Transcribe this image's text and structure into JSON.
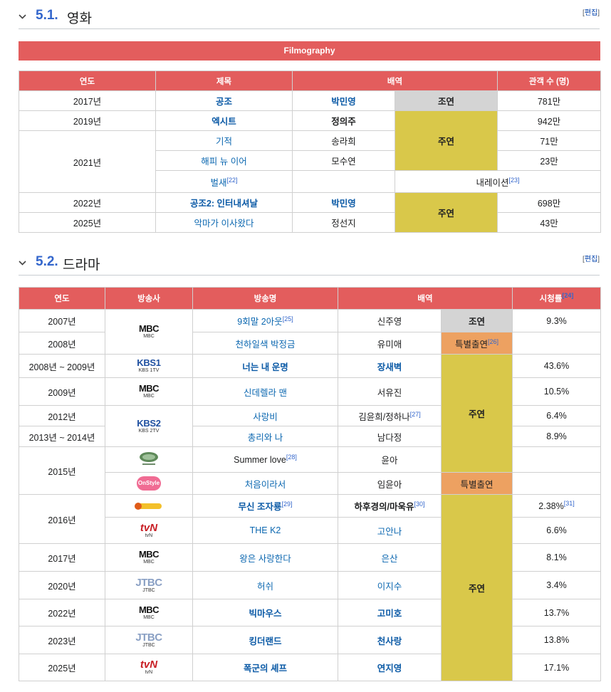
{
  "film_section": {
    "num": "5.1.",
    "title": "영화",
    "edit": "편집"
  },
  "film_caption": "Filmography",
  "film_headers": {
    "year": "연도",
    "title": "제목",
    "role": "배역",
    "audience": "관객 수 (명)"
  },
  "films": {
    "r0": {
      "year": "2017년",
      "title": "공조",
      "char": "박민영",
      "type": "조연",
      "aud": "781만"
    },
    "r1": {
      "year": "2019년",
      "title": "엑시트",
      "char": "정의주",
      "aud": "942만"
    },
    "r2": {
      "year": "2021년",
      "title": "기적",
      "char": "송라희",
      "aud": "71만"
    },
    "r3": {
      "title": "해피 뉴 이어",
      "char": "모수연",
      "aud": "23만"
    },
    "r4": {
      "title": "벌새",
      "title_ref": "[22]",
      "role": "내레이션",
      "role_ref": "[23]"
    },
    "r5": {
      "year": "2022년",
      "title": "공조2: 인터내셔날",
      "char": "박민영",
      "aud": "698만"
    },
    "r6": {
      "year": "2025년",
      "title": "악마가 이사왔다",
      "char": "정선지",
      "aud": "43만"
    },
    "lead1": "주연",
    "lead2": "주연"
  },
  "drama_section": {
    "num": "5.2.",
    "title": "드라마",
    "edit": "편집"
  },
  "drama_headers": {
    "year": "연도",
    "network": "방송사",
    "title": "방송명",
    "role": "배역",
    "rating": "시청률",
    "rating_ref": "[24]"
  },
  "dramas": {
    "r0": {
      "year": "2007년",
      "title": "9회말 2아웃",
      "title_ref": "[25]",
      "char": "신주영",
      "type": "조연",
      "rating": "9.3%"
    },
    "r1": {
      "year": "2008년",
      "title": "천하일색 박정금",
      "char": "유미애",
      "type": "특별출연",
      "type_ref": "[26]"
    },
    "r2": {
      "year": "2008년 ~ 2009년",
      "title": "너는 내 운명",
      "char": "장새벽",
      "rating": "43.6%"
    },
    "r3": {
      "year": "2009년",
      "title": "신데렐라 맨",
      "char": "서유진",
      "rating": "10.5%"
    },
    "r4": {
      "year": "2012년",
      "title": "사랑비",
      "char": "김윤희/정하나",
      "char_ref": "[27]",
      "rating": "6.4%"
    },
    "r5": {
      "year": "2013년 ~ 2014년",
      "title": "총리와 나",
      "char": "남다정",
      "rating": "8.9%"
    },
    "r6": {
      "year": "2015년",
      "title": "Summer love",
      "title_ref": "[28]",
      "char": "윤아"
    },
    "r7": {
      "title": "처음이라서",
      "char": "임윤아",
      "type": "특별출연"
    },
    "r8": {
      "year": "2016년",
      "title": "무신 조자룡",
      "title_ref": "[29]",
      "char": "하후경의/마욱유",
      "char_ref": "[30]",
      "rating": "2.38%",
      "rating_ref": "[31]"
    },
    "r9": {
      "title": "THE K2",
      "char": "고안나",
      "rating": "6.6%"
    },
    "r10": {
      "year": "2017년",
      "title": "왕은 사랑한다",
      "char": "은산",
      "rating": "8.1%"
    },
    "r11": {
      "year": "2020년",
      "title": "허쉬",
      "char": "이지수",
      "rating": "3.4%"
    },
    "r12": {
      "year": "2022년",
      "title": "빅마우스",
      "char": "고미호",
      "rating": "13.7%"
    },
    "r13": {
      "year": "2023년",
      "title": "킹더랜드",
      "char": "천사랑",
      "rating": "13.8%"
    },
    "r14": {
      "year": "2025년",
      "title": "폭군의 셰프",
      "char": "연지영",
      "rating": "17.1%"
    },
    "lead1": "주연",
    "lead2": "주연"
  },
  "networks": {
    "mbc1": {
      "logo": "MBC",
      "sub": "MBC"
    },
    "kbs1": {
      "logo": "KBS1",
      "sub": "KBS 1TV"
    },
    "mbc2": {
      "logo": "MBC",
      "sub": "MBC"
    },
    "kbs2": {
      "logo": "KBS2",
      "sub": "KBS 2TV"
    },
    "hwa": {
      "icon": "hwa-logo"
    },
    "onstyle": {
      "logo": "OnStyle"
    },
    "olleh": {
      "icon": "olleh-tv-logo"
    },
    "tvn1": {
      "logo": "tvN",
      "sub": "tvN"
    },
    "mbc3": {
      "logo": "MBC",
      "sub": "MBC"
    },
    "jtbc1": {
      "logo": "JTBC",
      "sub": "JTBC"
    },
    "mbc4": {
      "logo": "MBC",
      "sub": "MBC"
    },
    "jtbc2": {
      "logo": "JTBC",
      "sub": "JTBC"
    },
    "tvn2": {
      "logo": "tvN",
      "sub": "tvN"
    }
  }
}
